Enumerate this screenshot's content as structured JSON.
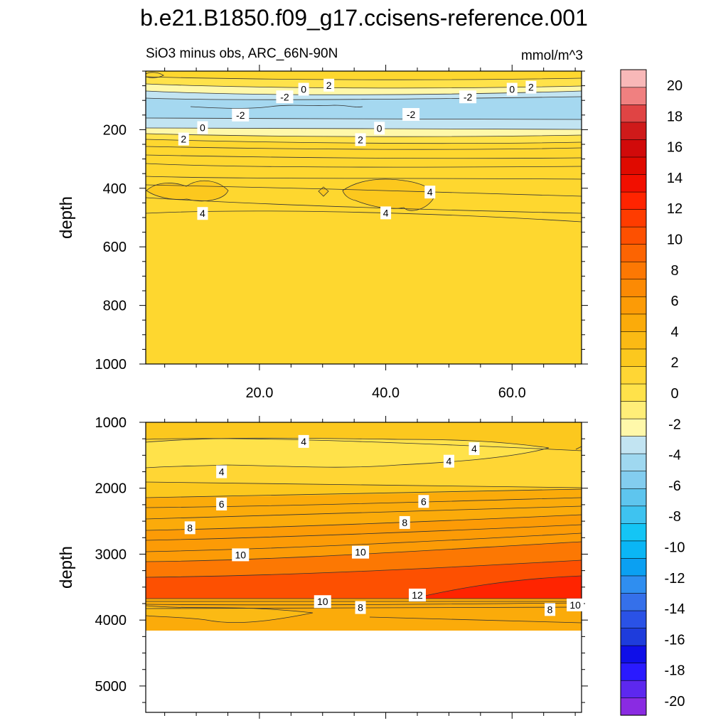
{
  "chart_data": {
    "type": "contour",
    "title": "b.e21.B1850.f09_g17.ccisens-reference.001",
    "subtitle_left": "SiO3 minus obs, ARC_66N-90N",
    "units": "mmol/m^3",
    "x_range": [
      2,
      71
    ],
    "x_ticks": [
      "20.0",
      "40.0",
      "60.0"
    ],
    "x_tick_values": [
      20,
      40,
      60
    ],
    "panels": [
      {
        "name": "upper",
        "ylabel": "depth",
        "y_range": [
          0,
          1000
        ],
        "y_ticks": [
          "200",
          "400",
          "600",
          "800",
          "1000"
        ],
        "y_tick_values": [
          200,
          400,
          600,
          800,
          1000
        ],
        "contour_labels": [
          {
            "text": "0",
            "x": 27,
            "y": 62
          },
          {
            "text": "2",
            "x": 31,
            "y": 48
          },
          {
            "text": "-2",
            "x": 24,
            "y": 88
          },
          {
            "text": "-2",
            "x": 17,
            "y": 150
          },
          {
            "text": "-2",
            "x": 53,
            "y": 88
          },
          {
            "text": "-2",
            "x": 44,
            "y": 148
          },
          {
            "text": "0",
            "x": 60,
            "y": 62
          },
          {
            "text": "2",
            "x": 63,
            "y": 55
          },
          {
            "text": "0",
            "x": 11,
            "y": 193
          },
          {
            "text": "2",
            "x": 8,
            "y": 232
          },
          {
            "text": "0",
            "x": 39,
            "y": 195
          },
          {
            "text": "2",
            "x": 36,
            "y": 234
          },
          {
            "text": "4",
            "x": 47,
            "y": 413
          },
          {
            "text": "4",
            "x": 11,
            "y": 486
          },
          {
            "text": "4",
            "x": 40,
            "y": 484
          }
        ]
      },
      {
        "name": "lower",
        "ylabel": "depth",
        "y_range": [
          1000,
          5400
        ],
        "y_ticks": [
          "1000",
          "2000",
          "3000",
          "4000",
          "5000"
        ],
        "y_tick_values": [
          1000,
          2000,
          3000,
          4000,
          5000
        ],
        "ocean_bottom": 4120,
        "contour_labels": [
          {
            "text": "4",
            "x": 27,
            "y": 1290
          },
          {
            "text": "4",
            "x": 14,
            "y": 1750
          },
          {
            "text": "4",
            "x": 50,
            "y": 1590
          },
          {
            "text": "4",
            "x": 54,
            "y": 1400
          },
          {
            "text": "6",
            "x": 14,
            "y": 2240
          },
          {
            "text": "6",
            "x": 46,
            "y": 2200
          },
          {
            "text": "8",
            "x": 9,
            "y": 2600
          },
          {
            "text": "8",
            "x": 43,
            "y": 2520
          },
          {
            "text": "10",
            "x": 17,
            "y": 3010
          },
          {
            "text": "10",
            "x": 36,
            "y": 2970
          },
          {
            "text": "12",
            "x": 45,
            "y": 3620
          },
          {
            "text": "10",
            "x": 30,
            "y": 3720
          },
          {
            "text": "8",
            "x": 36,
            "y": 3810
          },
          {
            "text": "8",
            "x": 66,
            "y": 3840
          },
          {
            "text": "10",
            "x": 70,
            "y": 3770
          }
        ]
      }
    ],
    "colorbar": {
      "levels": [
        -20,
        -18,
        -16,
        -14,
        -12,
        -10,
        -8,
        -6,
        -4,
        -2,
        0,
        2,
        4,
        6,
        8,
        10,
        12,
        14,
        16,
        18,
        20
      ],
      "labels": [
        "20",
        "18",
        "16",
        "14",
        "12",
        "10",
        "8",
        "6",
        "4",
        "2",
        "0",
        "-2",
        "-4",
        "-6",
        "-8",
        "-10",
        "-12",
        "-14",
        "-16",
        "-18",
        "-20"
      ],
      "colors_bottom_to_top": [
        "#8a2be2",
        "#5d28ef",
        "#2a1aff",
        "#0f0fe8",
        "#1e3cdc",
        "#2a52e6",
        "#3570ea",
        "#2f8ef0",
        "#0ba0f2",
        "#0ab6f5",
        "#14c5f5",
        "#3ec3f0",
        "#5ec5ee",
        "#83cdef",
        "#9fd8f0",
        "#c2e4f2",
        "#fff8aa",
        "#ffee78",
        "#ffe24a",
        "#ffd634",
        "#fcc81e",
        "#fbba14",
        "#fbab0a",
        "#fc9b06",
        "#fc8a04",
        "#fc7803",
        "#fc6402",
        "#fd5001",
        "#fe3c00",
        "#ff2400",
        "#f20f00",
        "#e00a00",
        "#d10a0a",
        "#cf1a1a",
        "#e04444",
        "#f08080",
        "#f8b8b8"
      ]
    }
  }
}
